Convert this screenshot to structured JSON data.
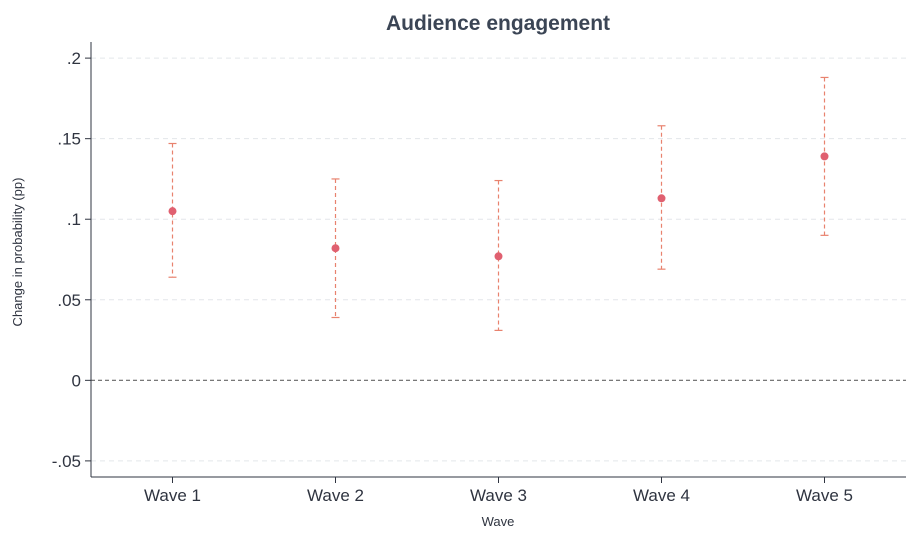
{
  "chart_data": {
    "type": "scatter",
    "title": "Audience engagement",
    "xlabel": "Wave",
    "ylabel": "Change in probability (pp)",
    "categories": [
      "Wave 1",
      "Wave 2",
      "Wave 3",
      "Wave 4",
      "Wave 5"
    ],
    "series": [
      {
        "values": [
          0.105,
          0.082,
          0.077,
          0.113,
          0.139
        ],
        "ci_lower": [
          0.064,
          0.039,
          0.031,
          0.069,
          0.09
        ],
        "ci_upper": [
          0.147,
          0.125,
          0.124,
          0.158,
          0.188
        ]
      }
    ],
    "ylim": [
      -0.06,
      0.21
    ],
    "yticks": [
      -0.05,
      0,
      0.05,
      0.1,
      0.15,
      0.2
    ],
    "ytick_labels": [
      "-.05",
      "0",
      ".05",
      ".1",
      ".15",
      ".2"
    ],
    "reference_line_y": 0,
    "grid": true,
    "colors": {
      "marker": "#e06070",
      "errorbar": "#e8826e",
      "grid": "#e3e6ea",
      "axis": "#2f3440",
      "title": "#3b4555",
      "reference": "#666666"
    }
  }
}
